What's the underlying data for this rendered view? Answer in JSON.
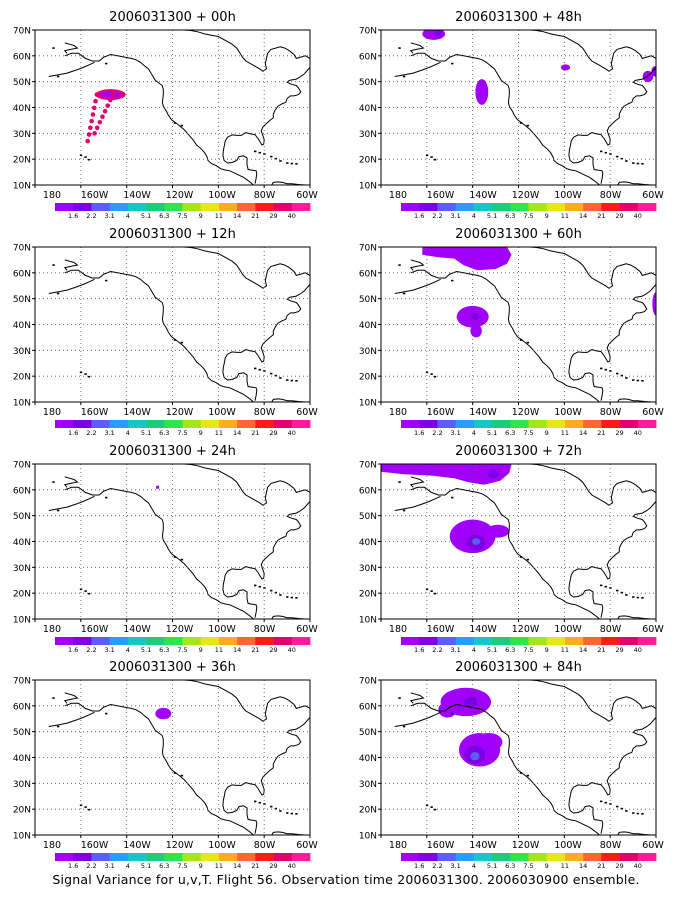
{
  "figure": {
    "caption": "Signal Variance for u,v,T. Flight 56. Observation time 2006031300. 2006030900 ensemble.",
    "lat_labels": [
      "10N",
      "20N",
      "30N",
      "40N",
      "50N",
      "60N",
      "70N"
    ],
    "lon_labels": [
      "180",
      "160W",
      "140W",
      "120W",
      "100W",
      "80W",
      "60W"
    ],
    "colorbar": {
      "labels": [
        "1.6",
        "2.2",
        "3.1",
        "4",
        "5.1",
        "6.3",
        "7.5",
        "9",
        "11",
        "14",
        "21",
        "29",
        "40"
      ],
      "colors": [
        "#a100ff",
        "#7d00e6",
        "#5c5cff",
        "#2b9bff",
        "#17c7c7",
        "#1ccc7a",
        "#2ee64c",
        "#a4e619",
        "#e6e619",
        "#ffad1f",
        "#ff6633",
        "#ff1a1a",
        "#e6006b",
        "#ff1a9e"
      ]
    },
    "panels": [
      {
        "title": "2006031300 + 00h",
        "lead": "00h"
      },
      {
        "title": "2006031300 + 48h",
        "lead": "48h"
      },
      {
        "title": "2006031300 + 12h",
        "lead": "12h"
      },
      {
        "title": "2006031300 + 60h",
        "lead": "60h"
      },
      {
        "title": "2006031300 + 24h",
        "lead": "24h"
      },
      {
        "title": "2006031300 + 72h",
        "lead": "72h"
      },
      {
        "title": "2006031300 + 36h",
        "lead": "36h"
      },
      {
        "title": "2006031300 + 84h",
        "lead": "84h"
      }
    ]
  }
}
